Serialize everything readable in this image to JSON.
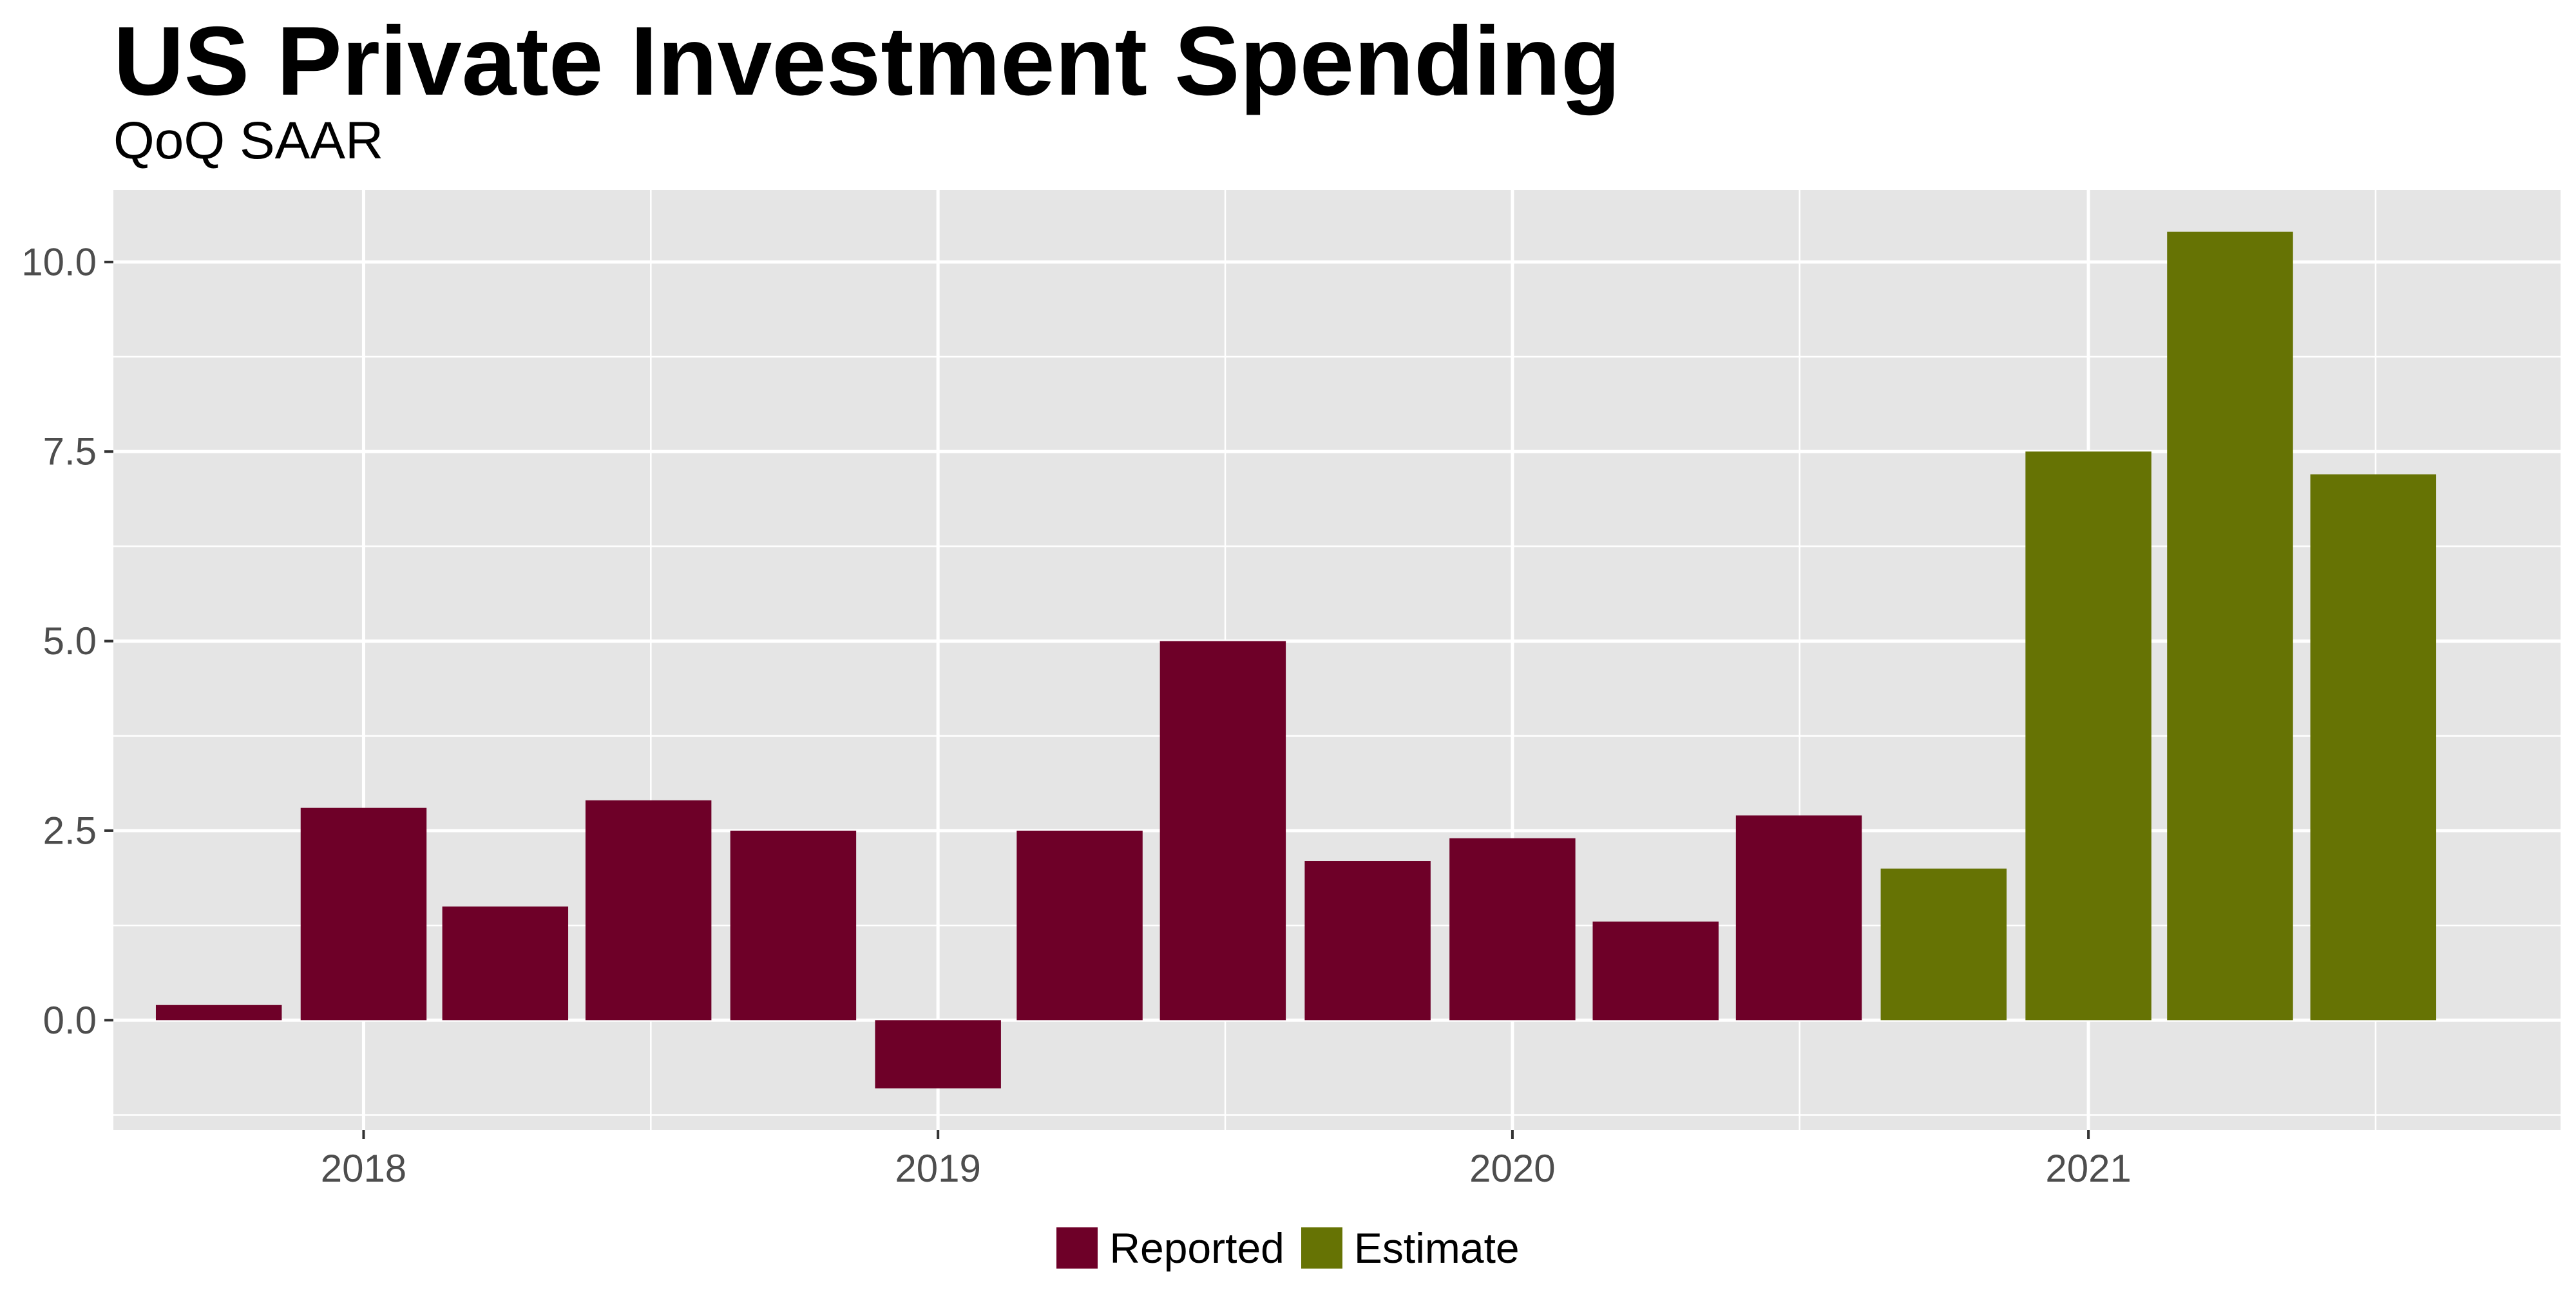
{
  "chart_data": {
    "type": "bar",
    "title": "US Private Investment Spending",
    "subtitle": "QoQ SAAR",
    "xlabel": "",
    "ylabel": "",
    "x_ticks": [
      "2018",
      "2019",
      "2020",
      "2021"
    ],
    "y_ticks": [
      "0.0",
      "2.5",
      "5.0",
      "7.5",
      "10.0"
    ],
    "ylim": [
      -1.45,
      10.95
    ],
    "xlim": [
      "2017-07-26",
      "2021-10-28"
    ],
    "grid": true,
    "legend_position": "bottom",
    "legend": [
      {
        "name": "Reported",
        "color": "#6e0028"
      },
      {
        "name": "Estimate",
        "color": "#667304"
      }
    ],
    "bar_width_days": 80,
    "series": [
      {
        "name": "Reported",
        "color": "#6e0028",
        "points": [
          {
            "x": "2017-10-01",
            "y": 0.2
          },
          {
            "x": "2018-01-01",
            "y": 2.8
          },
          {
            "x": "2018-04-01",
            "y": 1.5
          },
          {
            "x": "2018-07-01",
            "y": 2.9
          },
          {
            "x": "2018-10-01",
            "y": 2.5
          },
          {
            "x": "2019-01-01",
            "y": -0.9
          },
          {
            "x": "2019-04-01",
            "y": 2.5
          },
          {
            "x": "2019-07-01",
            "y": 5.0
          },
          {
            "x": "2019-10-01",
            "y": 2.1
          },
          {
            "x": "2020-01-01",
            "y": 2.4
          },
          {
            "x": "2020-04-01",
            "y": 1.3
          },
          {
            "x": "2020-07-01",
            "y": 2.7
          }
        ]
      },
      {
        "name": "Estimate",
        "color": "#667304",
        "points": [
          {
            "x": "2020-10-01",
            "y": 2.0
          },
          {
            "x": "2021-01-01",
            "y": 7.5
          },
          {
            "x": "2021-04-01",
            "y": 10.4
          },
          {
            "x": "2021-07-01",
            "y": 7.2
          }
        ]
      }
    ]
  }
}
